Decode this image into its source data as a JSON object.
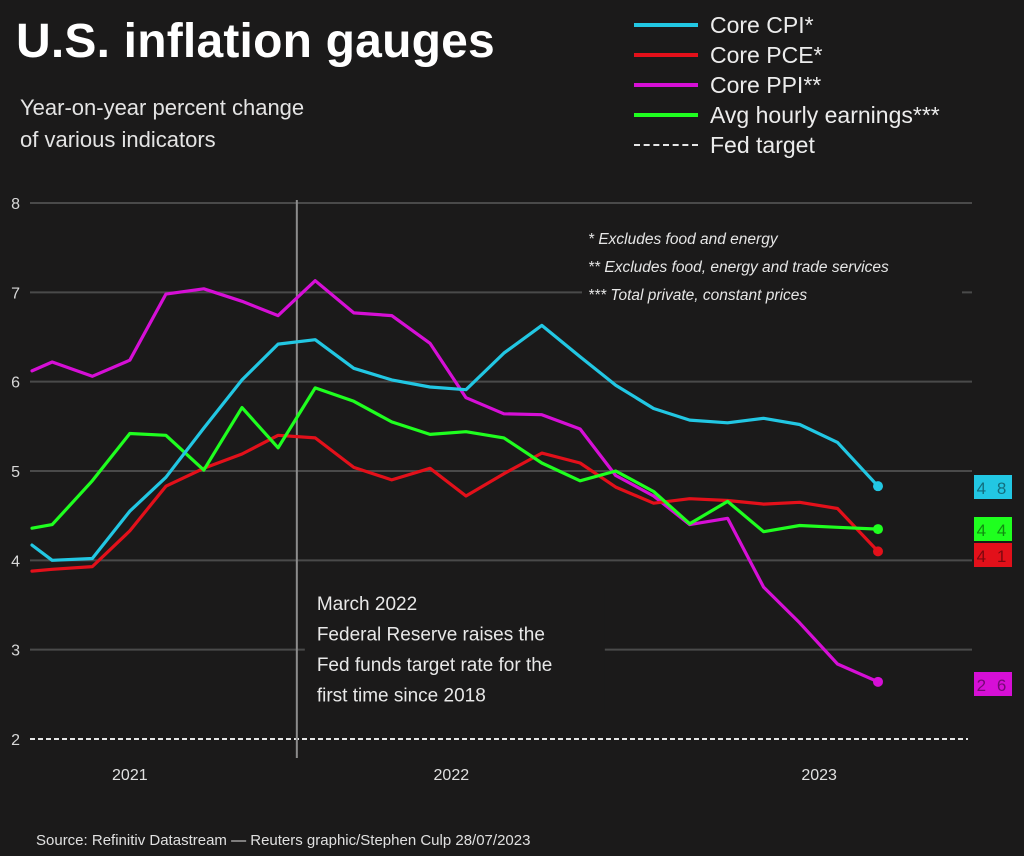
{
  "header": {
    "title": "U.S. inflation gauges",
    "subtitle_line1": "Year-on-year percent change",
    "subtitle_line2": "of various indicators"
  },
  "legend": [
    {
      "label": "Core CPI*",
      "color": "#22c7e3",
      "style": "solid"
    },
    {
      "label": "Core PCE*",
      "color": "#e3101a",
      "style": "solid"
    },
    {
      "label": "Core PPI**",
      "color": "#d60fd6",
      "style": "solid"
    },
    {
      "label": "Avg hourly earnings***",
      "color": "#1fff1f",
      "style": "solid"
    },
    {
      "label": "Fed target",
      "color": "#e6e6e6",
      "style": "dashed"
    }
  ],
  "footnotes": [
    "* Excludes food and energy",
    "** Excludes food, energy and trade services",
    "*** Total private, constant prices"
  ],
  "annotation": {
    "lines": [
      "March 2022",
      "Federal Reserve raises the",
      "Fed funds target rate for the",
      "first time since 2018"
    ],
    "x": 7.2
  },
  "source": "Source: Refinitiv Datastream — Reuters graphic/Stephen Culp 28/07/2023",
  "chart_data": {
    "type": "line",
    "title": "U.S. inflation gauges",
    "subtitle": "Year-on-year percent change of various indicators",
    "xlabel": "",
    "ylabel": "",
    "ylim": [
      2,
      8
    ],
    "yticks": [
      2,
      3,
      4,
      5,
      6,
      7,
      8
    ],
    "xlim": [
      0,
      25.6
    ],
    "xticks": [
      {
        "label": "2021",
        "x": 2.66
      },
      {
        "label": "2022",
        "x": 11.4
      },
      {
        "label": "2023",
        "x": 21.4
      }
    ],
    "grid": true,
    "legend_position": "top-right",
    "x": [
      0,
      0.55,
      1.64,
      2.66,
      3.64,
      4.67,
      5.71,
      6.69,
      7.7,
      8.75,
      9.78,
      10.82,
      11.8,
      12.83,
      13.86,
      14.9,
      15.87,
      16.9,
      17.88,
      18.91,
      19.89,
      20.87,
      21.9,
      23.0
    ],
    "series": [
      {
        "name": "Core CPI*",
        "color": "#22c7e3",
        "values": [
          4.17,
          4.0,
          4.02,
          4.55,
          4.93,
          5.48,
          6.02,
          6.42,
          6.47,
          6.15,
          6.02,
          5.94,
          5.91,
          6.32,
          6.63,
          6.28,
          5.96,
          5.7,
          5.57,
          5.54,
          5.59,
          5.52,
          5.32,
          4.83
        ],
        "end_label": "4.8"
      },
      {
        "name": "Core PCE*",
        "color": "#e3101a",
        "values": [
          3.88,
          3.9,
          3.93,
          4.33,
          4.83,
          5.03,
          5.19,
          5.4,
          5.37,
          5.04,
          4.9,
          5.03,
          4.72,
          4.97,
          5.2,
          5.09,
          4.82,
          4.64,
          4.69,
          4.67,
          4.63,
          4.65,
          4.58,
          4.1
        ],
        "end_label": "4.1"
      },
      {
        "name": "Core PPI**",
        "color": "#d60fd6",
        "values": [
          6.12,
          6.22,
          6.06,
          6.24,
          6.98,
          7.04,
          6.9,
          6.74,
          7.13,
          6.77,
          6.74,
          6.43,
          5.82,
          5.64,
          5.63,
          5.47,
          4.95,
          4.72,
          4.4,
          4.47,
          3.7,
          3.3,
          2.84,
          2.64
        ],
        "end_label": "2.6"
      },
      {
        "name": "Avg hourly earnings***",
        "color": "#1fff1f",
        "values": [
          4.36,
          4.4,
          4.89,
          5.42,
          5.4,
          5.01,
          5.71,
          5.26,
          5.93,
          5.78,
          5.55,
          5.41,
          5.44,
          5.37,
          5.09,
          4.89,
          5.0,
          4.77,
          4.41,
          4.66,
          4.32,
          4.39,
          4.37,
          4.35
        ],
        "end_label": "4.4"
      },
      {
        "name": "Fed target",
        "color": "#e6e6e6",
        "style": "dashed",
        "values_constant": 2
      }
    ]
  }
}
